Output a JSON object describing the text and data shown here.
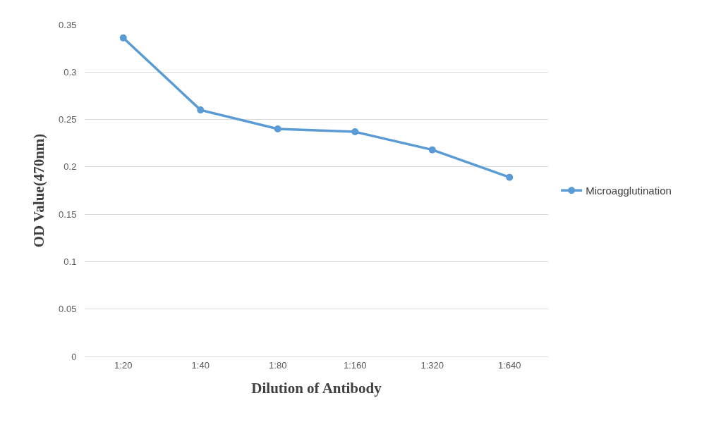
{
  "chart_data": {
    "type": "line",
    "xlabel": "Dilution of Antibody",
    "ylabel": "OD Value(470nm)",
    "categories": [
      "1:20",
      "1:40",
      "1:80",
      "1:160",
      "1:320",
      "1:640"
    ],
    "series": [
      {
        "name": "Microagglutination",
        "color": "#5b9bd5",
        "values": [
          0.336,
          0.26,
          0.24,
          0.237,
          0.218,
          0.189
        ]
      }
    ],
    "ylim": [
      0,
      0.35
    ],
    "yticks": [
      0,
      0.05,
      0.1,
      0.15,
      0.2,
      0.25,
      0.3,
      0.35
    ],
    "grid": "y",
    "legend": "right",
    "marker": "circle",
    "line_style": "solid"
  }
}
